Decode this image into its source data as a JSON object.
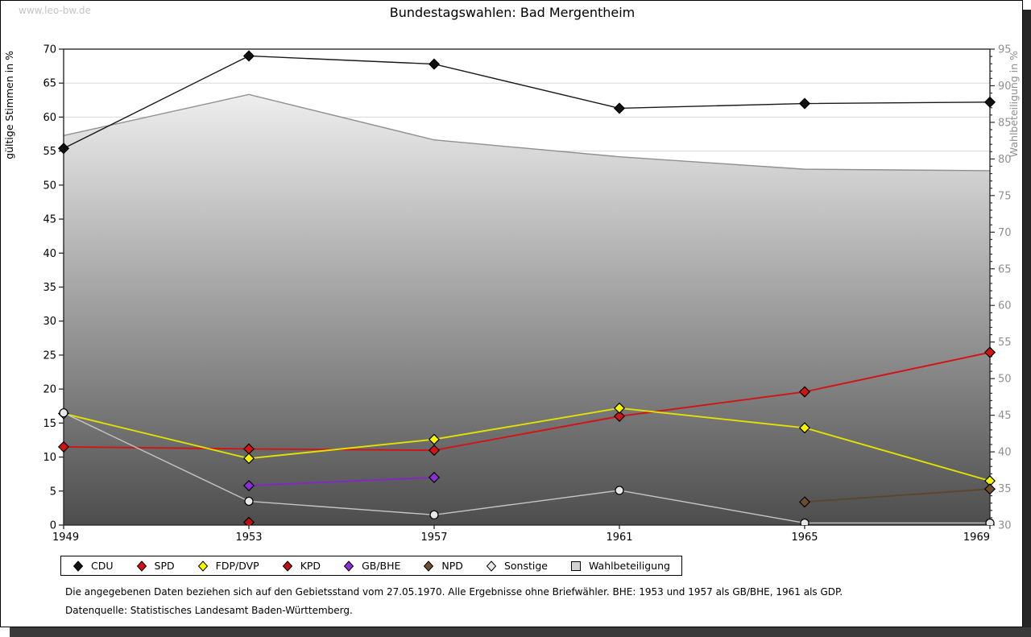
{
  "window": {
    "watermark": "www.leo-bw.de"
  },
  "title": "Bundestagswahlen: Bad Mergentheim",
  "footnotes": {
    "line1": "Die angegebenen Daten beziehen sich auf den Gebietsstand vom 27.05.1970. Alle Ergebnisse ohne Briefwähler. BHE: 1953 und 1957 als GB/BHE, 1961 als GDP.",
    "line2": "Datenquelle: Statistisches Landesamt Baden-Württemberg."
  },
  "chart_data": {
    "type": "line",
    "title": "Bundestagswahlen: Bad Mergentheim",
    "x": [
      "1949",
      "1953",
      "1957",
      "1961",
      "1965",
      "1969"
    ],
    "left_axis": {
      "label": "gültige Stimmen in %",
      "min": 0,
      "max": 70,
      "tick_step": 5,
      "grid": true
    },
    "right_axis": {
      "label": "Wahlbeteiligung in %",
      "min": 30,
      "max": 95,
      "tick_step": 5,
      "minor_tick_step": 1
    },
    "legend_position": "bottom",
    "series": [
      {
        "name": "CDU",
        "axis": "left",
        "marker": "diamond",
        "line_color": "#1a1a1a",
        "fill_color": "#111111",
        "values": [
          55.4,
          69.0,
          67.8,
          61.3,
          62.0,
          62.2
        ]
      },
      {
        "name": "SPD",
        "axis": "left",
        "marker": "diamond",
        "line_color": "#d21414",
        "fill_color": "#d21414",
        "values": [
          11.5,
          11.2,
          11.0,
          16.0,
          19.6,
          25.4
        ]
      },
      {
        "name": "FDP/DVP",
        "axis": "left",
        "marker": "diamond",
        "line_color": "#e2e200",
        "fill_color": "#f5f500",
        "values": [
          16.4,
          9.8,
          12.6,
          17.2,
          14.3,
          6.5
        ]
      },
      {
        "name": "KPD",
        "axis": "left",
        "marker": "diamond",
        "line_color": "#aa1111",
        "fill_color": "#bb1111",
        "values": [
          null,
          0.4,
          null,
          null,
          null,
          null
        ]
      },
      {
        "name": "GB/BHE",
        "axis": "left",
        "marker": "diamond",
        "line_color": "#8228c8",
        "fill_color": "#8c2ed6",
        "values": [
          null,
          5.8,
          7.0,
          null,
          null,
          null
        ]
      },
      {
        "name": "NPD",
        "axis": "left",
        "marker": "diamond",
        "line_color": "#5c4630",
        "fill_color": "#6f4d2e",
        "values": [
          null,
          null,
          null,
          null,
          3.4,
          5.3
        ]
      },
      {
        "name": "Sonstige",
        "axis": "left",
        "marker": "circle",
        "line_color": "#c4c4c4",
        "fill_color": "#e8e8e8",
        "values": [
          16.5,
          3.5,
          1.5,
          5.1,
          0.3,
          0.3
        ]
      },
      {
        "name": "Wahlbeteiligung",
        "axis": "right",
        "marker": "square",
        "line_color": "#909090",
        "fill_color": "#d3d3d3",
        "area": true,
        "area_gradient": [
          "#ffffff",
          "#4d4d4d"
        ],
        "values": [
          83.2,
          88.8,
          82.6,
          80.3,
          78.6,
          78.4
        ]
      }
    ],
    "grid_color": "#d8d8d8",
    "frame_color": "#2b2b2b",
    "left_tick_label_color": "#000000",
    "right_tick_label_color": "#8f8f8f"
  }
}
